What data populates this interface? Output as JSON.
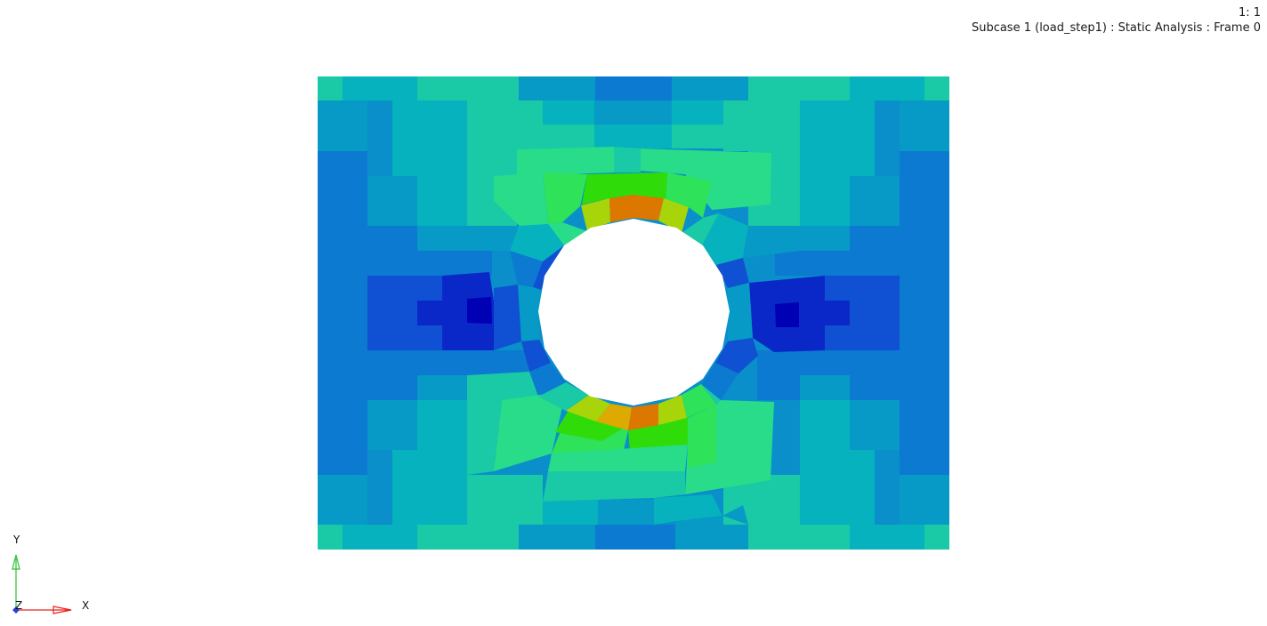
{
  "viewport": {
    "zoom_readout": "1: 1",
    "subcase_label": "Subcase 1 (load_step1) : Static Analysis : Frame 0"
  },
  "triad": {
    "x_label": "X",
    "y_label": "Y",
    "z_label": "Z",
    "x_color": "#e8221b",
    "y_color": "#2fbf2f",
    "z_color": "#2d3ed6"
  },
  "contour": {
    "palette": [
      "#0000b4",
      "#0a28c8",
      "#1050d2",
      "#0c7ad0",
      "#079ac6",
      "#05b2bd",
      "#1ac9a6",
      "#28dc8a",
      "#2ee25a",
      "#2fdc0a",
      "#a8d40a",
      "#dcaa00",
      "#dc7800"
    ]
  },
  "icons": {
    "x_arrow": "x-axis-arrow-icon",
    "y_arrow": "y-axis-arrow-icon",
    "z_marker": "z-axis-marker-icon"
  }
}
